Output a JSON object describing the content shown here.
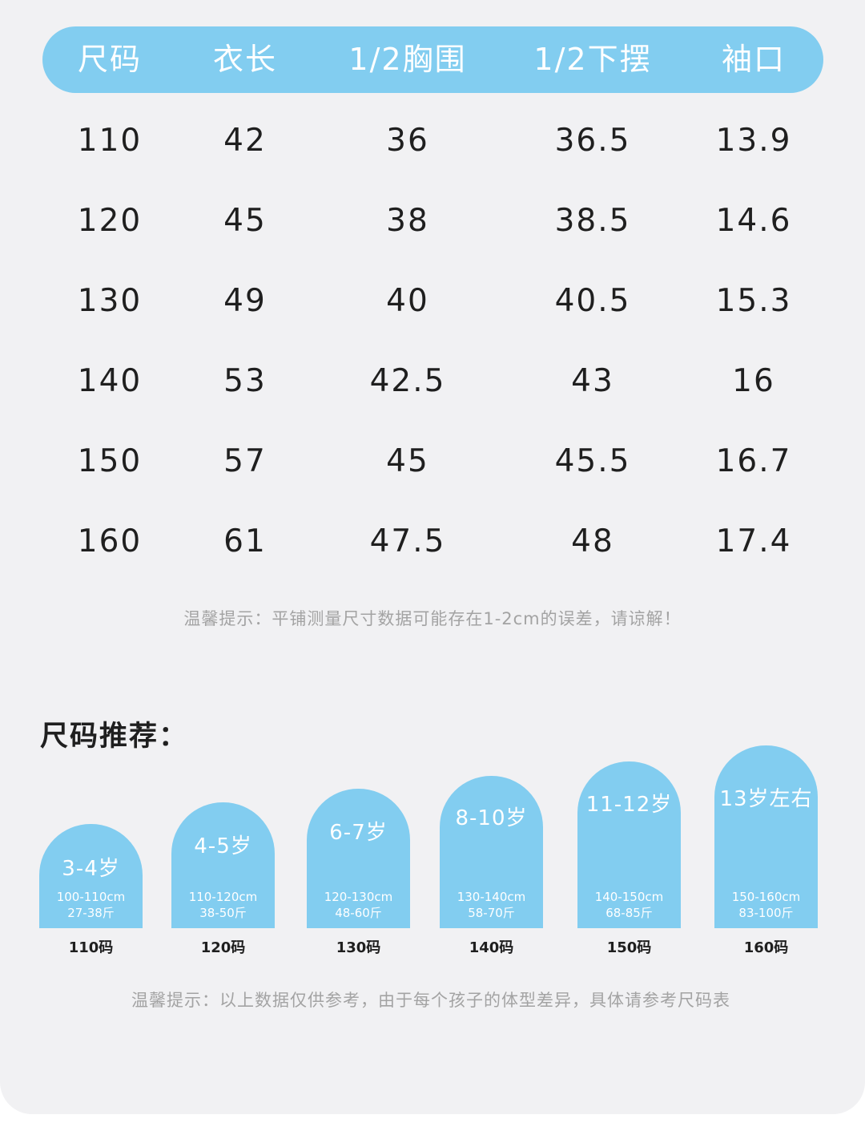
{
  "table": {
    "headers": [
      "尺码",
      "衣长",
      "1/2胸围",
      "1/2下摆",
      "袖口"
    ],
    "rows": [
      [
        "110",
        "42",
        "36",
        "36.5",
        "13.9"
      ],
      [
        "120",
        "45",
        "38",
        "38.5",
        "14.6"
      ],
      [
        "130",
        "49",
        "40",
        "40.5",
        "15.3"
      ],
      [
        "140",
        "53",
        "42.5",
        "43",
        "16"
      ],
      [
        "150",
        "57",
        "45",
        "45.5",
        "16.7"
      ],
      [
        "160",
        "61",
        "47.5",
        "48",
        "17.4"
      ]
    ]
  },
  "note1": "温馨提示：平铺测量尺寸数据可能存在1-2cm的误差，请谅解！",
  "recommend": {
    "title": "尺码推荐：",
    "items": [
      {
        "age": "3-4岁",
        "height": "100-110cm",
        "weight": "27-38斤",
        "code": "110码"
      },
      {
        "age": "4-5岁",
        "height": "110-120cm",
        "weight": "38-50斤",
        "code": "120码"
      },
      {
        "age": "6-7岁",
        "height": "120-130cm",
        "weight": "48-60斤",
        "code": "130码"
      },
      {
        "age": "8-10岁",
        "height": "130-140cm",
        "weight": "58-70斤",
        "code": "140码"
      },
      {
        "age": "11-12岁",
        "height": "140-150cm",
        "weight": "68-85斤",
        "code": "150码"
      },
      {
        "age": "13岁左右",
        "height": "150-160cm",
        "weight": "83-100斤",
        "code": "160码"
      }
    ]
  },
  "note2": "温馨提示：以上数据仅供参考，由于每个孩子的体型差异，具体请参考尺码表",
  "colors": {
    "accent": "#82cdf0",
    "background": "#f1f1f3",
    "text": "#1f1f1f",
    "muted": "#a3a3a3"
  }
}
